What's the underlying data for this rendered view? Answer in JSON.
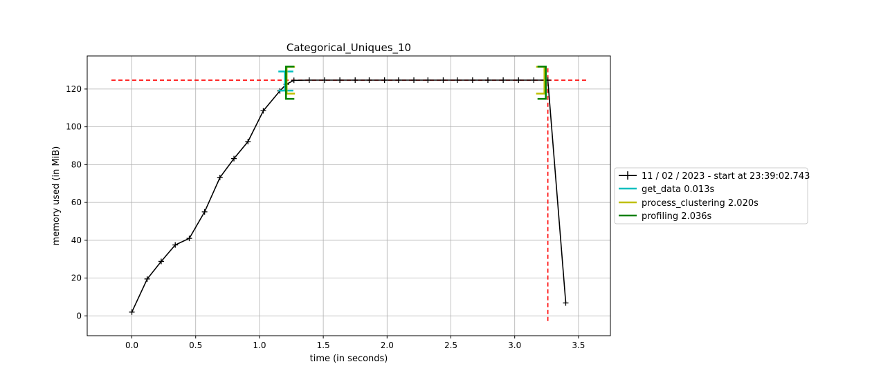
{
  "chart_data": {
    "type": "line",
    "title": "Categorical_Uniques_10",
    "xlabel": "time (in seconds)",
    "ylabel": "memory used (in MiB)",
    "xlim": [
      -0.35,
      3.75
    ],
    "ylim": [
      -10.5,
      137.5
    ],
    "xticks": [
      0.0,
      0.5,
      1.0,
      1.5,
      2.0,
      2.5,
      3.0,
      3.5
    ],
    "xtick_labels": [
      "0.0",
      "0.5",
      "1.0",
      "1.5",
      "2.0",
      "2.5",
      "3.0",
      "3.5"
    ],
    "yticks": [
      0,
      20,
      40,
      60,
      80,
      100,
      120
    ],
    "ytick_labels": [
      "0",
      "20",
      "40",
      "60",
      "80",
      "100",
      "120"
    ],
    "grid": true,
    "legend_position": "outside-right",
    "series": [
      {
        "name": "11 / 02 / 2023 - start at 23:39:02.743",
        "color": "#000000",
        "marker": "plus",
        "x": [
          0.0,
          0.12,
          0.23,
          0.34,
          0.45,
          0.57,
          0.69,
          0.8,
          0.91,
          1.03,
          1.16,
          1.21,
          1.27,
          1.39,
          1.51,
          1.63,
          1.75,
          1.86,
          1.98,
          2.09,
          2.21,
          2.32,
          2.44,
          2.55,
          2.67,
          2.79,
          2.91,
          3.03,
          3.15,
          3.26,
          3.4
        ],
        "y": [
          2.0,
          19.5,
          28.8,
          37.5,
          41.0,
          55.0,
          73.2,
          83.2,
          92.2,
          108.5,
          119.0,
          122.5,
          124.6,
          124.7,
          124.7,
          124.7,
          124.7,
          124.7,
          124.7,
          124.7,
          124.7,
          124.7,
          124.7,
          124.7,
          124.7,
          124.7,
          124.7,
          124.7,
          124.7,
          124.7,
          6.8
        ]
      }
    ],
    "reference_lines": {
      "color": "#ff0000",
      "max_memory_y": 124.7,
      "max_memory_x_range": [
        -0.16,
        3.56
      ],
      "peak_time_x": 3.26,
      "peak_time_y_range": [
        -4,
        131
      ]
    },
    "function_brackets": [
      {
        "name": "get_data 0.013s",
        "color": "#00bfbf",
        "start": 1.2,
        "end": 1.213,
        "mem_min": 119.2,
        "mem_max": 129.3
      },
      {
        "name": "process_clustering 2.020s",
        "color": "#bfbf00",
        "start": 1.213,
        "end": 3.233,
        "mem_min": 117.6,
        "mem_max": 131.8
      },
      {
        "name": "profiling 2.036s",
        "color": "#008000",
        "start": 1.208,
        "end": 3.244,
        "mem_min": 114.8,
        "mem_max": 131.9
      }
    ]
  }
}
